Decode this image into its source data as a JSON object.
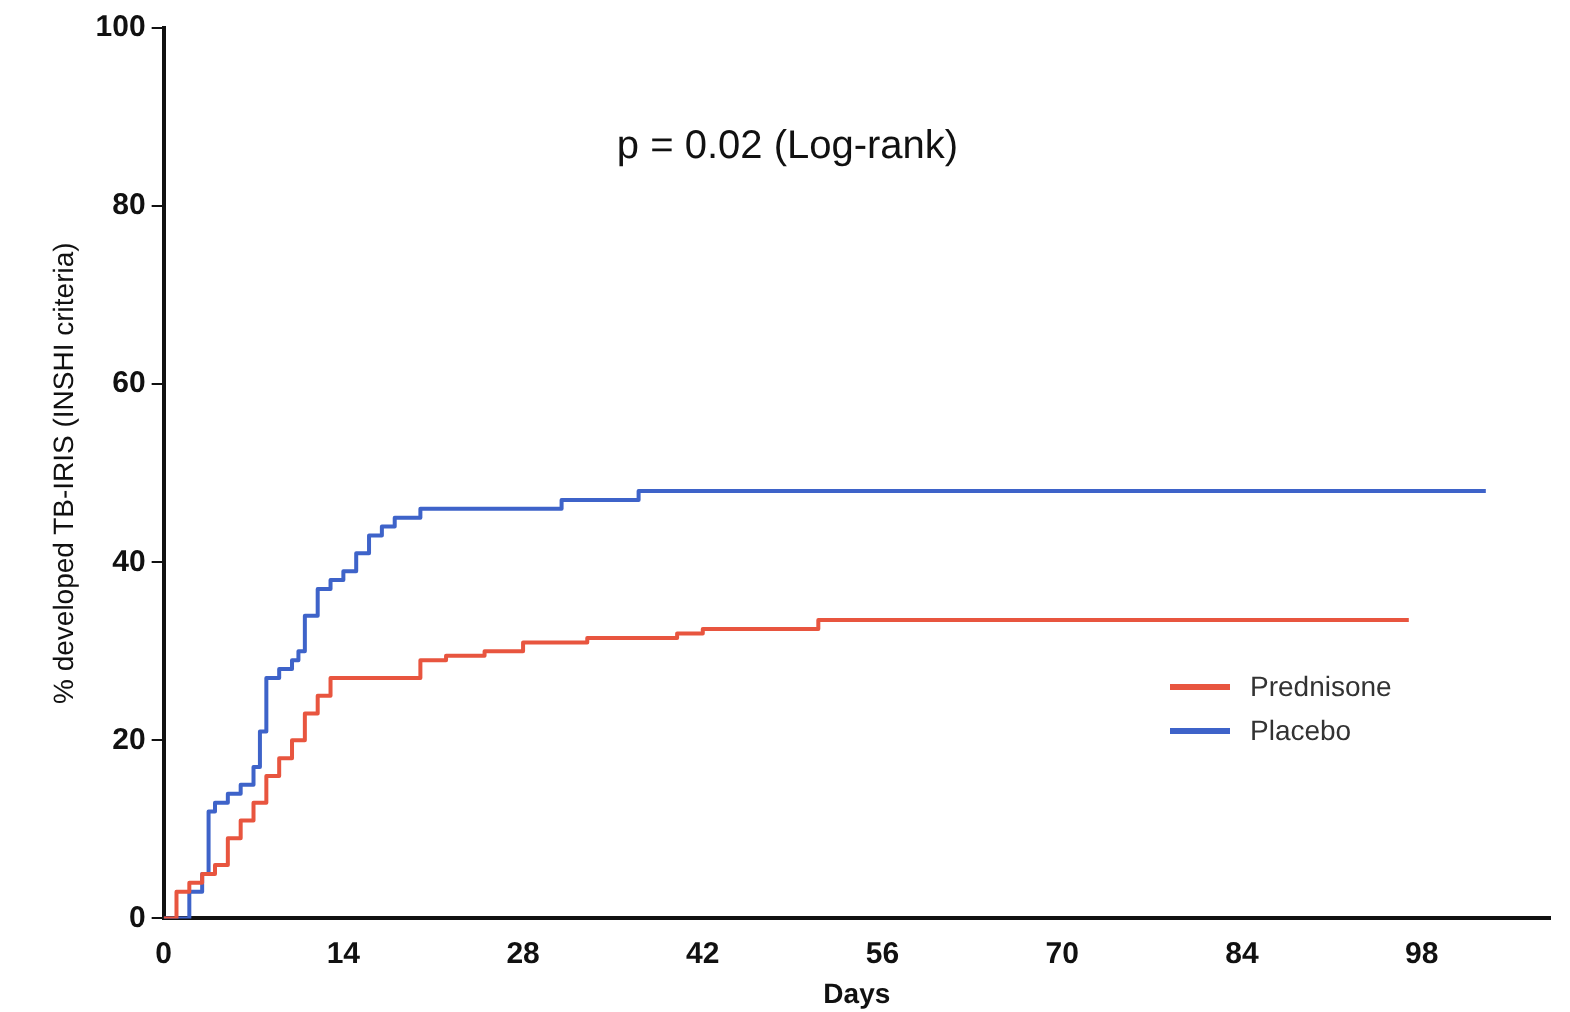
{
  "chart_data": {
    "type": "step",
    "xlabel": "Days",
    "ylabel": "% developed TB-IRIS (INSHI criteria)",
    "annotations": [
      "p = 0.02 (Log-rank)"
    ],
    "xlim": [
      0,
      108
    ],
    "xticks": [
      0,
      14,
      28,
      42,
      56,
      70,
      84,
      98
    ],
    "ylim": [
      0,
      100
    ],
    "yticks": [
      0,
      20,
      40,
      60,
      80,
      100
    ],
    "grid": false,
    "legend": "bottom right",
    "series": [
      {
        "name": "Prednisone",
        "color": "#e8553f",
        "x": [
          0,
          1,
          2,
          3,
          4,
          5,
          6,
          7,
          8,
          9,
          10,
          11,
          12,
          13,
          20,
          22,
          25,
          28,
          33,
          40,
          42,
          51,
          97
        ],
        "values": [
          0,
          3,
          4,
          5,
          6,
          9,
          11,
          13,
          16,
          18,
          20,
          23,
          25,
          27,
          29,
          29.5,
          30,
          31,
          31.5,
          32,
          32.5,
          33.5,
          33.5
        ]
      },
      {
        "name": "Placebo",
        "color": "#3e63c9",
        "x": [
          0,
          2,
          3,
          3.5,
          4,
          5,
          6,
          7,
          7.5,
          8,
          9,
          10,
          10.5,
          11,
          12,
          13,
          14,
          15,
          16,
          17,
          18,
          20,
          31,
          37,
          103
        ],
        "values": [
          0,
          3,
          5,
          12,
          13,
          14,
          15,
          17,
          21,
          27,
          28,
          29,
          30,
          34,
          37,
          38,
          39,
          41,
          43,
          44,
          45,
          46,
          47,
          48,
          48
        ]
      }
    ]
  }
}
